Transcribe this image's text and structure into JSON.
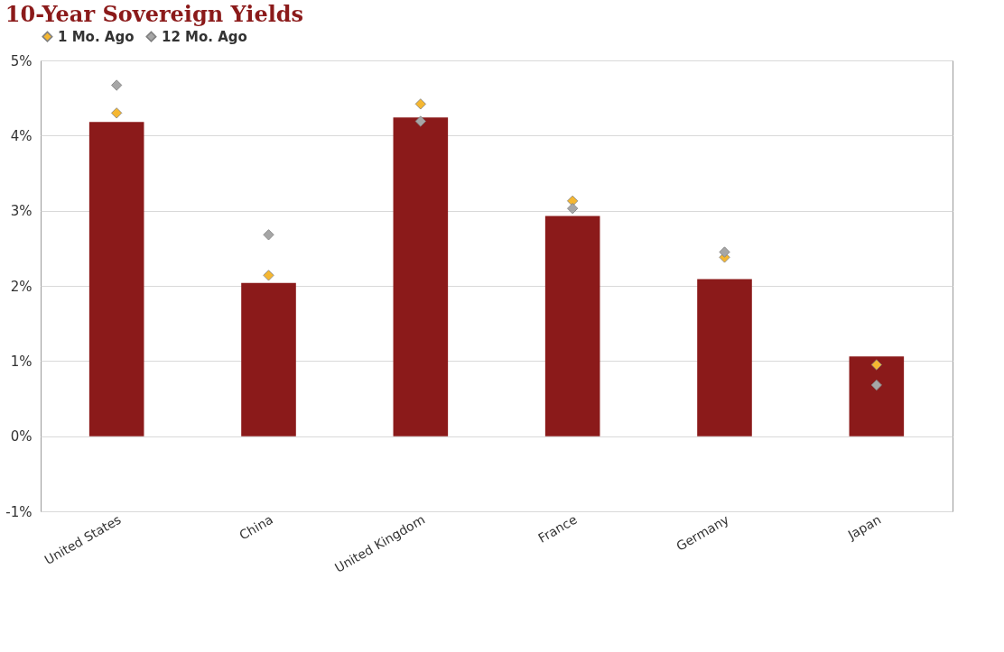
{
  "chart_data": {
    "type": "bar",
    "title": "10-Year Sovereign Yields",
    "categories": [
      "United States",
      "China",
      "United Kingdom",
      "France",
      "Germany",
      "Japan"
    ],
    "series": [
      {
        "color": "#8b1a1a",
        "values": [
          4.18,
          2.04,
          4.24,
          2.93,
          2.09,
          1.06
        ]
      },
      {
        "type": "scatter",
        "name": "1 Mo. Ago",
        "color": "#f5b731",
        "values": [
          4.3,
          2.14,
          4.42,
          3.13,
          2.38,
          0.95
        ]
      },
      {
        "type": "scatter",
        "name": "12 Mo. Ago",
        "color": "#a6a6a6",
        "values": [
          4.67,
          2.68,
          4.19,
          3.03,
          2.45,
          0.68
        ]
      }
    ],
    "ylim": [
      -1,
      5
    ],
    "yticks": [
      {
        "value": -1,
        "label": "-1%"
      },
      {
        "value": 0,
        "label": "0%"
      },
      {
        "value": 1,
        "label": "1%"
      },
      {
        "value": 2,
        "label": "2%"
      },
      {
        "value": 3,
        "label": "3%"
      },
      {
        "value": 4,
        "label": "4%"
      },
      {
        "value": 5,
        "label": "5%"
      }
    ],
    "grid": "y",
    "legend": "top",
    "marker": "diamond"
  }
}
